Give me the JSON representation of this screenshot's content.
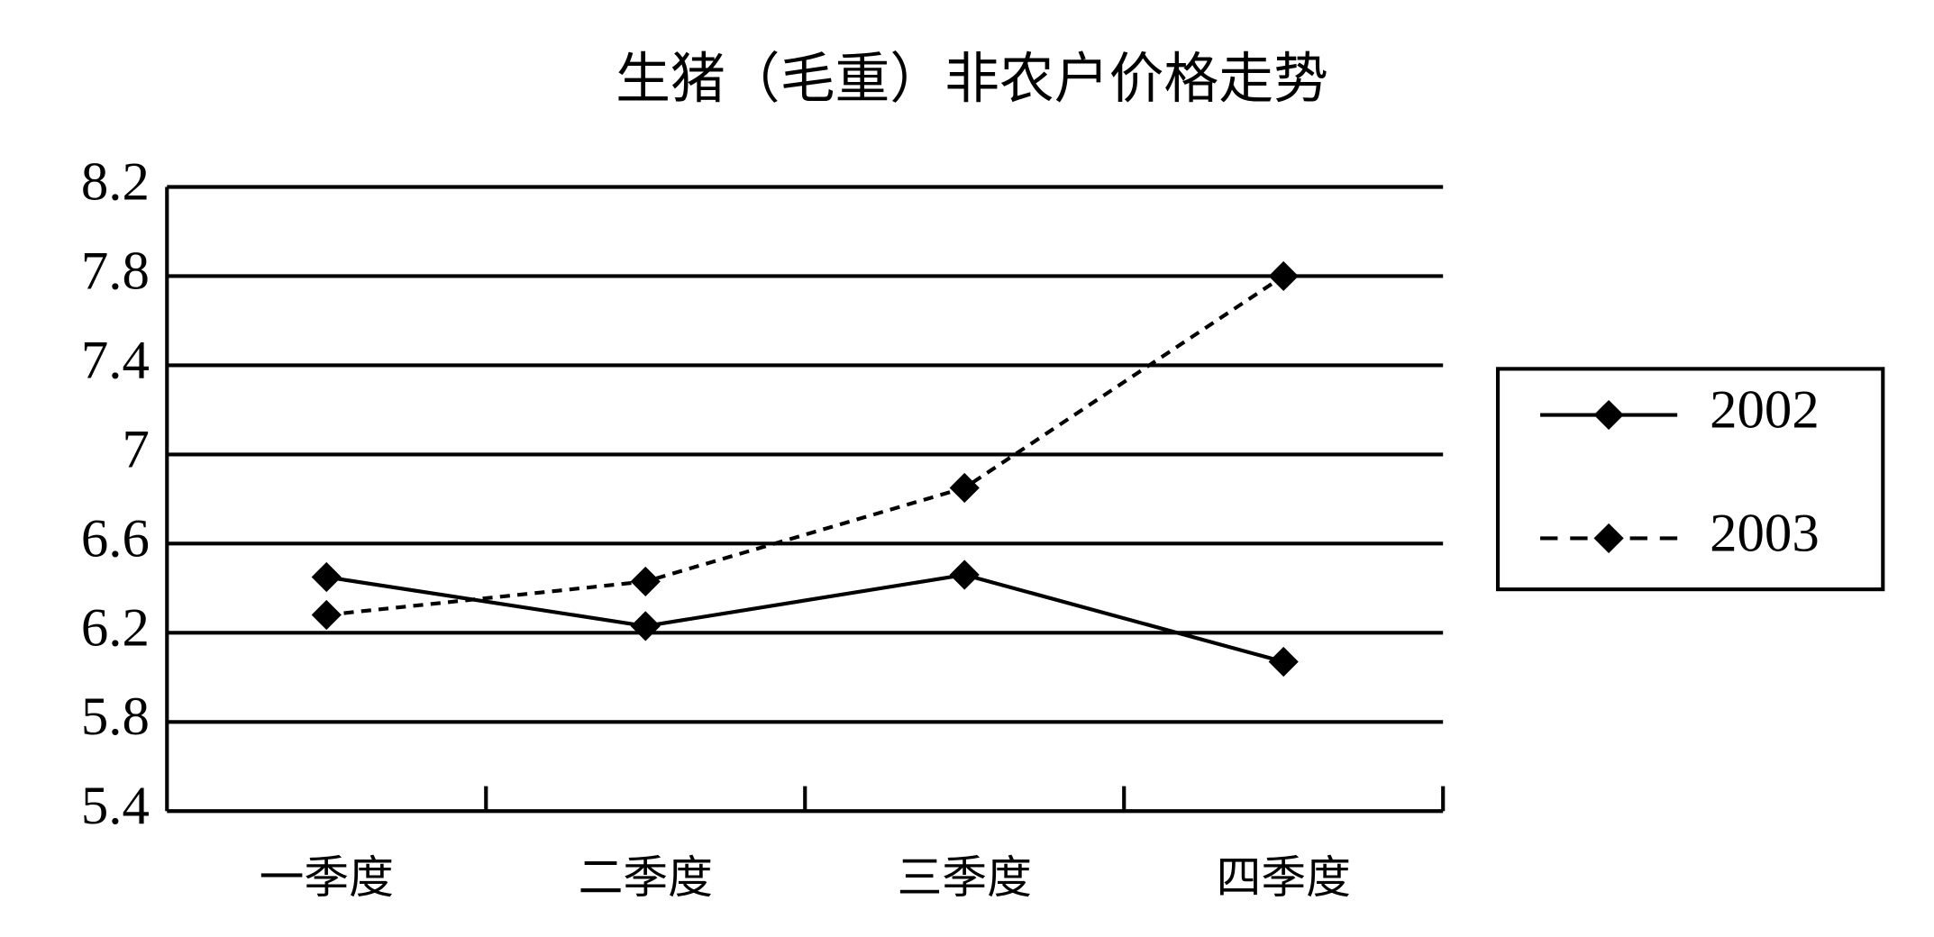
{
  "chart_data": {
    "type": "line",
    "title": "生猪（毛重）非农户价格走势",
    "categories": [
      "一季度",
      "二季度",
      "三季度",
      "四季度"
    ],
    "series": [
      {
        "name": "2002",
        "color": "#000000",
        "dash": "solid",
        "values": [
          6.45,
          6.23,
          6.46,
          6.07
        ]
      },
      {
        "name": "2003",
        "color": "#000000",
        "dash": "dashed",
        "values": [
          6.28,
          6.43,
          6.85,
          7.8
        ]
      }
    ],
    "ylim": [
      5.4,
      8.2
    ],
    "yticks": [
      5.4,
      5.8,
      6.2,
      6.6,
      7,
      7.4,
      7.8,
      8.2
    ],
    "grid": true,
    "legend": "right"
  }
}
